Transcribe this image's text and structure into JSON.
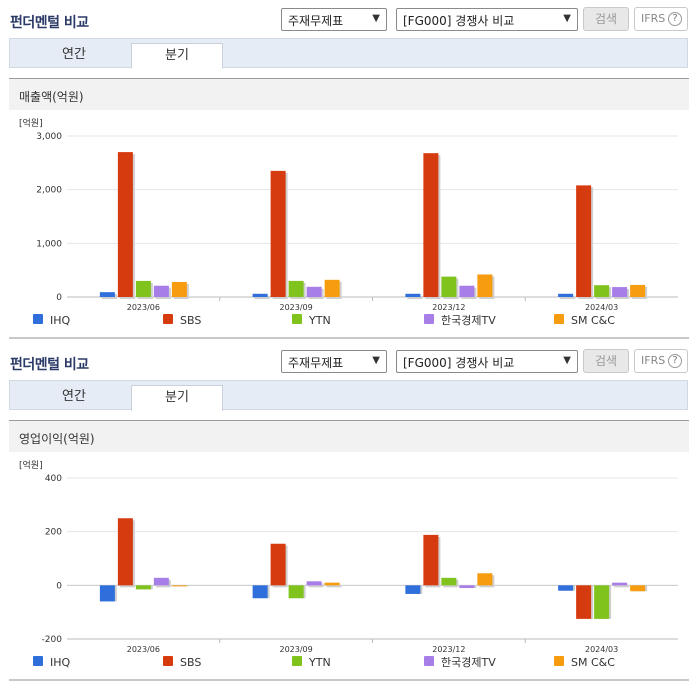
{
  "sections": [
    {
      "title": "펀더멘털 비교",
      "select1": "주재무제표",
      "select2": "[FG000] 경쟁사 비교",
      "search_label": "검색",
      "ifrs_label": "IFRS",
      "help_glyph": "?",
      "tabs": [
        "연간",
        "분기"
      ],
      "active_tab": "분기",
      "panel_title": "매출액(억원)"
    },
    {
      "title": "펀더멘털 비교",
      "select1": "주재무제표",
      "select2": "[FG000] 경쟁사 비교",
      "search_label": "검색",
      "ifrs_label": "IFRS",
      "help_glyph": "?",
      "tabs": [
        "연간",
        "분기"
      ],
      "active_tab": "분기",
      "panel_title": "영업이익(억원)"
    }
  ],
  "chart_data": [
    {
      "type": "bar",
      "unit_label": "[억원]",
      "categories": [
        "2023/06",
        "2023/09",
        "2023/12",
        "2024/03"
      ],
      "ylim": [
        0,
        3000
      ],
      "yticks": [
        0,
        1000,
        2000,
        3000
      ],
      "ytick_labels": [
        "0",
        "1,000",
        "2,000",
        "3,000"
      ],
      "legend_position": "bottom",
      "series": [
        {
          "name": "IHQ",
          "color": "#2f6fdb",
          "values": [
            90,
            60,
            60,
            60
          ]
        },
        {
          "name": "SBS",
          "color": "#d63a0f",
          "values": [
            2700,
            2350,
            2680,
            2080
          ]
        },
        {
          "name": "YTN",
          "color": "#7fc31c",
          "values": [
            300,
            300,
            380,
            220
          ]
        },
        {
          "name": "한국경제TV",
          "color": "#a77de8",
          "values": [
            210,
            190,
            210,
            185
          ]
        },
        {
          "name": "SM C&C",
          "color": "#f79c0f",
          "values": [
            280,
            320,
            420,
            225
          ]
        }
      ]
    },
    {
      "type": "bar",
      "unit_label": "[억원]",
      "categories": [
        "2023/06",
        "2023/09",
        "2023/12",
        "2024/03"
      ],
      "ylim": [
        -200,
        400
      ],
      "yticks": [
        -200,
        0,
        200,
        400
      ],
      "ytick_labels": [
        "-200",
        "0",
        "200",
        "400"
      ],
      "legend_position": "bottom",
      "series": [
        {
          "name": "IHQ",
          "color": "#2f6fdb",
          "values": [
            -60,
            -48,
            -32,
            -20
          ]
        },
        {
          "name": "SBS",
          "color": "#d63a0f",
          "values": [
            250,
            155,
            188,
            -125
          ]
        },
        {
          "name": "YTN",
          "color": "#7fc31c",
          "values": [
            -15,
            -48,
            28,
            -125
          ]
        },
        {
          "name": "한국경제TV",
          "color": "#a77de8",
          "values": [
            28,
            15,
            -10,
            10
          ]
        },
        {
          "name": "SM C&C",
          "color": "#f79c0f",
          "values": [
            -2,
            10,
            45,
            -22
          ]
        }
      ]
    }
  ]
}
